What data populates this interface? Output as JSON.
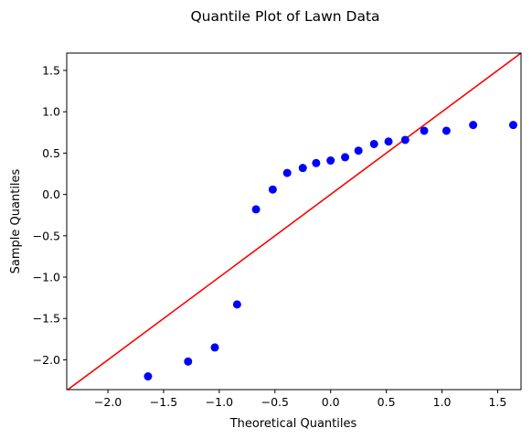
{
  "chart_data": {
    "type": "scatter",
    "title": "Quantile Plot of Lawn Data",
    "xlabel": "Theoretical Quantiles",
    "ylabel": "Sample Quantiles",
    "xlim": [
      -2.37,
      1.71
    ],
    "ylim": [
      -2.36,
      1.71
    ],
    "grid": false,
    "x_ticks": [
      -2.0,
      -1.5,
      -1.0,
      -0.5,
      0.0,
      0.5,
      1.0,
      1.5
    ],
    "x_tick_labels": [
      "−2.0",
      "−1.5",
      "−1.0",
      "−0.5",
      "0.0",
      "0.5",
      "1.0",
      "1.5"
    ],
    "y_ticks": [
      -2.0,
      -1.5,
      -1.0,
      -0.5,
      0.0,
      0.5,
      1.0,
      1.5
    ],
    "y_tick_labels": [
      "−2.0",
      "−1.5",
      "−1.0",
      "−0.5",
      "0.0",
      "0.5",
      "1.0",
      "1.5"
    ],
    "series": [
      {
        "kind": "points",
        "color": "#0000ff",
        "x": [
          -1.64,
          -1.28,
          -1.04,
          -0.84,
          -0.67,
          -0.52,
          -0.39,
          -0.25,
          -0.13,
          0.0,
          0.13,
          0.25,
          0.39,
          0.52,
          0.67,
          0.84,
          1.04,
          1.28,
          1.64
        ],
        "y": [
          -2.2,
          -2.02,
          -1.85,
          -1.33,
          -0.18,
          0.06,
          0.26,
          0.32,
          0.38,
          0.41,
          0.45,
          0.53,
          0.61,
          0.64,
          0.66,
          0.77,
          0.77,
          0.84,
          0.84
        ]
      },
      {
        "kind": "reference-line",
        "color": "#ff0000",
        "x": [
          -2.37,
          1.71
        ],
        "y": [
          -2.37,
          1.71
        ]
      }
    ]
  }
}
